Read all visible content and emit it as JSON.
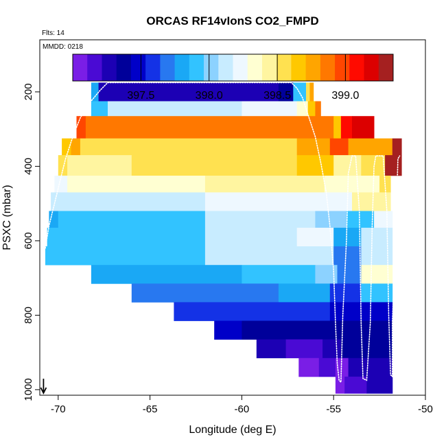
{
  "chart_data": {
    "type": "heatmap",
    "title": "ORCAS RF14vIonS CO2_FMPD",
    "flights_label": "Flts: 14",
    "date_label": "MMDD: 0218",
    "xlabel": "Longitude (deg E)",
    "ylabel": "PSXC (mbar)",
    "xlim": [
      -71,
      -50
    ],
    "ylim": [
      1015,
      60
    ],
    "x_ticks": [
      -70,
      -65,
      -60,
      -55,
      -50
    ],
    "y_ticks": [
      200,
      400,
      600,
      800,
      1000
    ],
    "colorbar": {
      "range": [
        397.0,
        399.35
      ],
      "ticks": [
        397.5,
        398.0,
        398.5,
        399.0
      ],
      "colors": [
        "#7a1ee6",
        "#4a0ad4",
        "#1c00b4",
        "#00009a",
        "#0000c8",
        "#1432e6",
        "#2878f0",
        "#1aa8f5",
        "#32c3ff",
        "#8cd2ff",
        "#c8ecff",
        "#eef8ff",
        "#ffffd2",
        "#fff5a0",
        "#ffe150",
        "#ffc800",
        "#ffa500",
        "#ff7800",
        "#ff4600",
        "#ff0a00",
        "#dc0000",
        "#a52020"
      ]
    },
    "bins": [
      {
        "p_top": 175,
        "p_bot": 225,
        "cells": [
          [
            -68.2,
            -67.8,
            397.8
          ],
          [
            -67.8,
            -66.5,
            397.25
          ],
          [
            -66.5,
            -63,
            397.25
          ],
          [
            -63,
            -62,
            397.3
          ],
          [
            -62,
            -58,
            397.25
          ],
          [
            -58,
            -57.2,
            397.35
          ],
          [
            -57.2,
            -56.5,
            397.9
          ],
          [
            -56.5,
            -56.3,
            398.6
          ],
          [
            -56.3,
            -56.1,
            398.75
          ]
        ]
      },
      {
        "p_top": 225,
        "p_bot": 265,
        "cells": [
          [
            -68.2,
            -67.3,
            397.95
          ],
          [
            -67.3,
            -60,
            398.15
          ],
          [
            -60,
            -57,
            398.2
          ],
          [
            -57,
            -56.4,
            398.3
          ],
          [
            -56.4,
            -56.0,
            398.65
          ],
          [
            -56.0,
            -55.7,
            398.85
          ]
        ]
      },
      {
        "p_top": 265,
        "p_bot": 325,
        "cells": [
          [
            -69.0,
            -68.5,
            398.95
          ],
          [
            -68.5,
            -55.5,
            398.85
          ],
          [
            -55.5,
            -55.0,
            398.9
          ],
          [
            -55.0,
            -54.6,
            398.7
          ],
          [
            -54.6,
            -54.0,
            399.1
          ],
          [
            -54.0,
            -52.8,
            399.15
          ]
        ]
      },
      {
        "p_top": 325,
        "p_bot": 370,
        "cells": [
          [
            -69.8,
            -69.3,
            398.7
          ],
          [
            -69.3,
            -68.8,
            398.8
          ],
          [
            -68.8,
            -57,
            398.6
          ],
          [
            -57,
            -55.2,
            398.8
          ],
          [
            -55.2,
            -54.2,
            399.0
          ],
          [
            -54.2,
            -51.8,
            398.8
          ],
          [
            -51.8,
            -51.3,
            399.3
          ]
        ]
      },
      {
        "p_top": 370,
        "p_bot": 425,
        "cells": [
          [
            -70.0,
            -69.5,
            398.6
          ],
          [
            -69.5,
            -66,
            398.45
          ],
          [
            -66,
            -57,
            398.5
          ],
          [
            -57,
            -55,
            398.65
          ],
          [
            -55,
            -53.5,
            398.4
          ],
          [
            -53.5,
            -52.2,
            398.5
          ],
          [
            -52.2,
            -51.3,
            399.3
          ]
        ]
      },
      {
        "p_top": 425,
        "p_bot": 470,
        "cells": [
          [
            -70.2,
            -69.5,
            398.2
          ],
          [
            -69.5,
            -62,
            398.35
          ],
          [
            -62,
            -57,
            398.4
          ],
          [
            -57,
            -55.5,
            398.45
          ],
          [
            -55.5,
            -52.5,
            398.3
          ],
          [
            -52.5,
            -51.9,
            398.6
          ]
        ]
      },
      {
        "p_top": 470,
        "p_bot": 520,
        "cells": [
          [
            -70.4,
            -68.0,
            398.1
          ],
          [
            -68.0,
            -62,
            398.15
          ],
          [
            -62,
            -56,
            398.2
          ],
          [
            -56,
            -54.0,
            398.25
          ],
          [
            -54.0,
            -51.9,
            398.4
          ]
        ]
      },
      {
        "p_top": 520,
        "p_bot": 565,
        "cells": [
          [
            -70.5,
            -70.0,
            397.85
          ],
          [
            -70.0,
            -62,
            397.95
          ],
          [
            -62,
            -56,
            398.1
          ],
          [
            -56,
            -54.3,
            398.05
          ],
          [
            -54.3,
            -52.8,
            397.9
          ],
          [
            -52.8,
            -51.8,
            398.2
          ]
        ]
      },
      {
        "p_top": 565,
        "p_bot": 615,
        "cells": [
          [
            -70.6,
            -68.5,
            397.95
          ],
          [
            -68.5,
            -62,
            397.95
          ],
          [
            -62,
            -57,
            398.1
          ],
          [
            -57,
            -55.0,
            398.2
          ],
          [
            -55.0,
            -53.5,
            397.85
          ],
          [
            -53.5,
            -51.8,
            398.1
          ]
        ]
      },
      {
        "p_top": 615,
        "p_bot": 665,
        "cells": [
          [
            -70.7,
            -68.5,
            397.95
          ],
          [
            -68.5,
            -62,
            397.95
          ],
          [
            -62,
            -57,
            398.1
          ],
          [
            -57,
            -55.0,
            398.15
          ],
          [
            -55.0,
            -53.5,
            397.7
          ],
          [
            -53.5,
            -51.8,
            398.1
          ]
        ]
      },
      {
        "p_top": 665,
        "p_bot": 715,
        "cells": [
          [
            -68.2,
            -64.0,
            397.8
          ],
          [
            -64.0,
            -60,
            397.85
          ],
          [
            -60,
            -56,
            397.9
          ],
          [
            -56,
            -54.8,
            398.0
          ],
          [
            -54.8,
            -53.5,
            397.65
          ],
          [
            -53.5,
            -51.8,
            398.3
          ]
        ]
      },
      {
        "p_top": 715,
        "p_bot": 765,
        "cells": [
          [
            -66.0,
            -62,
            397.65
          ],
          [
            -62,
            -58,
            397.7
          ],
          [
            -58,
            -55.2,
            397.75
          ],
          [
            -55.2,
            -53.5,
            397.55
          ],
          [
            -53.5,
            -51.8,
            397.9
          ]
        ]
      },
      {
        "p_top": 765,
        "p_bot": 815,
        "cells": [
          [
            -63.7,
            -62.3,
            397.55
          ],
          [
            -62.3,
            -58,
            397.6
          ],
          [
            -58,
            -55.2,
            397.6
          ],
          [
            -55.2,
            -51.8,
            397.5
          ]
        ]
      },
      {
        "p_top": 815,
        "p_bot": 865,
        "cells": [
          [
            -61.5,
            -60.0,
            397.45
          ],
          [
            -60.0,
            -57,
            397.4
          ],
          [
            -57,
            -55.2,
            397.35
          ],
          [
            -55.2,
            -51.8,
            397.4
          ]
        ]
      },
      {
        "p_top": 865,
        "p_bot": 915,
        "cells": [
          [
            -59.2,
            -57.6,
            397.25
          ],
          [
            -57.6,
            -55.6,
            397.2
          ],
          [
            -55.6,
            -54.6,
            397.3
          ],
          [
            -54.6,
            -51.8,
            397.35
          ]
        ]
      },
      {
        "p_top": 915,
        "p_bot": 965,
        "cells": [
          [
            -56.9,
            -55.8,
            397.1
          ],
          [
            -55.8,
            -54.9,
            397.15
          ],
          [
            -54.9,
            -54.2,
            397.05
          ],
          [
            -54.2,
            -51.8,
            397.25
          ]
        ]
      },
      {
        "p_top": 965,
        "p_bot": 1010,
        "cells": [
          [
            -54.9,
            -54.4,
            397.05
          ],
          [
            -54.4,
            -53.2,
            397.2
          ],
          [
            -53.2,
            -51.8,
            397.3
          ]
        ]
      }
    ],
    "flight_track": {
      "x": [
        -70.7,
        -70.5,
        -70.2,
        -69.9,
        -69.6,
        -69.2,
        -68.8,
        -68.3,
        -67.7,
        -67.3,
        -66,
        -64,
        -62,
        -60,
        -58,
        -57.3,
        -57.0,
        -56.7,
        -56.4,
        -56.0,
        -55.7,
        -55.4,
        -55.2,
        -55.0,
        -54.9,
        -54.8,
        -54.7,
        -54.6,
        -54.5,
        -54.3,
        -54.2,
        -54.0,
        -53.9,
        -53.8,
        -53.6,
        -53.5,
        -53.4,
        -53.2,
        -53.0,
        -52.9,
        -52.8,
        -52.7,
        -52.6,
        -52.3,
        -52.1,
        -52.0,
        -51.9,
        -51.8,
        -51.8,
        -51.6,
        -51.5,
        -51.4
      ],
      "y": [
        620,
        560,
        500,
        440,
        380,
        320,
        270,
        230,
        195,
        175,
        175,
        175,
        175,
        175,
        175,
        175,
        190,
        215,
        260,
        320,
        390,
        470,
        560,
        680,
        820,
        930,
        975,
        980,
        800,
        600,
        420,
        372,
        372,
        372,
        520,
        820,
        970,
        975,
        820,
        560,
        400,
        372,
        372,
        372,
        520,
        800,
        960,
        965,
        820,
        560,
        380,
        372
      ]
    },
    "arrow_marker": {
      "x": -70.8,
      "y": 1000
    }
  }
}
